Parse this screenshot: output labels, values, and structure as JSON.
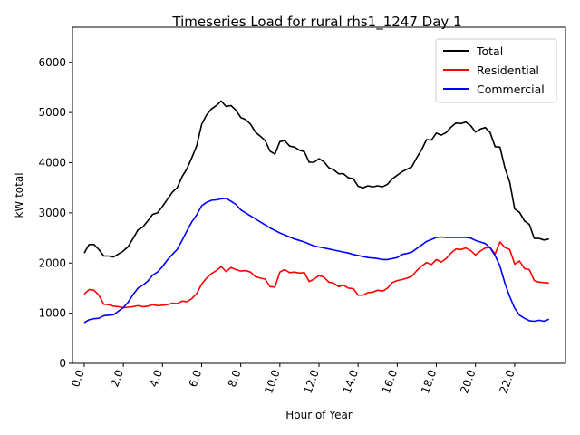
{
  "chart_data": {
    "type": "line",
    "title": "Timeseries Load for rural rhs1_1247  Day 1",
    "xlabel": "Hour of Year",
    "ylabel": "kW total",
    "xlim": [
      -0.6,
      24.6
    ],
    "ylim": [
      0,
      6700
    ],
    "yticks": [
      0,
      1000,
      2000,
      3000,
      4000,
      5000,
      6000
    ],
    "xticks": [
      0,
      2,
      4,
      6,
      8,
      10,
      12,
      14,
      16,
      18,
      20,
      22
    ],
    "xtick_labels": [
      "0.0",
      "2.0",
      "4.0",
      "6.0",
      "8.0",
      "10.0",
      "12.0",
      "14.0",
      "16.0",
      "18.0",
      "20.0",
      "22.0"
    ],
    "grid": false,
    "legend_position": "top-right",
    "x_step_hours": 0.25,
    "series": [
      {
        "name": "Total",
        "color": "#000000",
        "values": [
          2200,
          2370,
          2370,
          2270,
          2140,
          2140,
          2120,
          2180,
          2240,
          2330,
          2490,
          2660,
          2720,
          2840,
          2970,
          3000,
          3130,
          3270,
          3410,
          3500,
          3720,
          3880,
          4100,
          4340,
          4760,
          4950,
          5070,
          5140,
          5230,
          5120,
          5140,
          5050,
          4900,
          4860,
          4770,
          4610,
          4530,
          4440,
          4230,
          4170,
          4420,
          4440,
          4330,
          4310,
          4250,
          4220,
          4010,
          4010,
          4080,
          4020,
          3900,
          3860,
          3780,
          3780,
          3700,
          3680,
          3530,
          3500,
          3540,
          3520,
          3540,
          3520,
          3570,
          3680,
          3750,
          3820,
          3870,
          3920,
          4100,
          4260,
          4460,
          4450,
          4590,
          4550,
          4600,
          4710,
          4790,
          4780,
          4810,
          4740,
          4610,
          4670,
          4700,
          4600,
          4320,
          4310,
          3900,
          3610,
          3080,
          3010,
          2840,
          2770,
          2490,
          2490,
          2460,
          2480
        ],
        "data_labels": []
      },
      {
        "name": "Residential",
        "color": "#ff0000",
        "values": [
          1380,
          1470,
          1460,
          1360,
          1180,
          1170,
          1140,
          1130,
          1110,
          1120,
          1130,
          1150,
          1130,
          1140,
          1170,
          1150,
          1160,
          1170,
          1200,
          1190,
          1240,
          1230,
          1290,
          1390,
          1580,
          1700,
          1790,
          1850,
          1930,
          1830,
          1910,
          1870,
          1840,
          1850,
          1820,
          1730,
          1700,
          1680,
          1530,
          1520,
          1820,
          1870,
          1810,
          1820,
          1800,
          1810,
          1630,
          1680,
          1750,
          1720,
          1620,
          1600,
          1530,
          1560,
          1500,
          1490,
          1360,
          1360,
          1410,
          1420,
          1460,
          1440,
          1500,
          1610,
          1650,
          1670,
          1700,
          1740,
          1850,
          1940,
          2010,
          1970,
          2070,
          2020,
          2090,
          2200,
          2280,
          2270,
          2300,
          2250,
          2160,
          2240,
          2300,
          2310,
          2180,
          2420,
          2310,
          2270,
          1980,
          2040,
          1890,
          1870,
          1650,
          1620,
          1610,
          1600
        ],
        "data_labels": []
      },
      {
        "name": "Commercial",
        "color": "#0000ff",
        "values": [
          810,
          870,
          890,
          900,
          950,
          960,
          970,
          1040,
          1110,
          1220,
          1370,
          1500,
          1560,
          1640,
          1760,
          1820,
          1930,
          2060,
          2170,
          2270,
          2450,
          2640,
          2820,
          2960,
          3140,
          3210,
          3250,
          3260,
          3280,
          3290,
          3230,
          3170,
          3060,
          3000,
          2940,
          2880,
          2820,
          2760,
          2700,
          2650,
          2600,
          2560,
          2520,
          2480,
          2450,
          2420,
          2380,
          2340,
          2320,
          2300,
          2280,
          2260,
          2240,
          2220,
          2200,
          2170,
          2150,
          2130,
          2110,
          2100,
          2090,
          2070,
          2070,
          2090,
          2110,
          2170,
          2190,
          2220,
          2290,
          2360,
          2430,
          2470,
          2510,
          2520,
          2510,
          2510,
          2510,
          2510,
          2510,
          2500,
          2450,
          2420,
          2390,
          2300,
          2150,
          1940,
          1600,
          1330,
          1100,
          960,
          900,
          850,
          840,
          860,
          840,
          880
        ],
        "data_labels": []
      }
    ]
  }
}
